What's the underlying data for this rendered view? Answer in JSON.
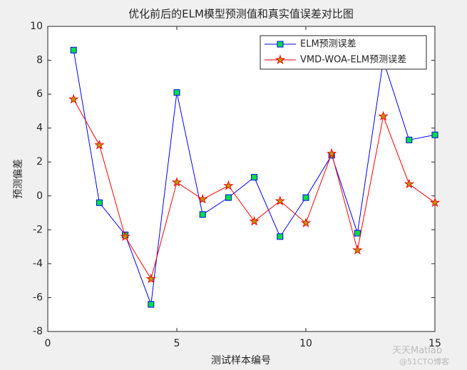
{
  "chart_data": {
    "type": "line",
    "title": "优化前后的ELM模型预测值和真实值误差对比图",
    "xlabel": "测试样本编号",
    "ylabel": "预测偏差",
    "x": [
      1,
      2,
      3,
      4,
      5,
      6,
      7,
      8,
      9,
      10,
      11,
      12,
      13,
      14,
      15
    ],
    "series": [
      {
        "name": "ELM预测误差",
        "color": "#0000ff",
        "marker": "square",
        "marker_color": "#00e040",
        "values": [
          8.6,
          -0.4,
          -2.3,
          -6.4,
          6.1,
          -1.1,
          -0.1,
          1.1,
          -2.4,
          -0.1,
          2.4,
          -2.2,
          8.0,
          3.3,
          3.6
        ]
      },
      {
        "name": "VMD-WOA-ELM预测误差",
        "color": "#ff0000",
        "marker": "star",
        "marker_color": "#b0a000",
        "values": [
          5.7,
          3.0,
          -2.4,
          -4.9,
          0.8,
          -0.2,
          0.6,
          -1.5,
          -0.3,
          -1.6,
          2.5,
          -3.2,
          4.7,
          0.7,
          -0.4
        ]
      }
    ],
    "xlim": [
      0,
      15
    ],
    "xticks": [
      0,
      5,
      10,
      15
    ],
    "ylim": [
      -8,
      10
    ],
    "yticks": [
      -8,
      -6,
      -4,
      -2,
      0,
      2,
      4,
      6,
      8,
      10
    ],
    "grid": false,
    "legend": "northeast",
    "watermark": [
      "天天Matlab",
      "@51CTO博客"
    ]
  }
}
